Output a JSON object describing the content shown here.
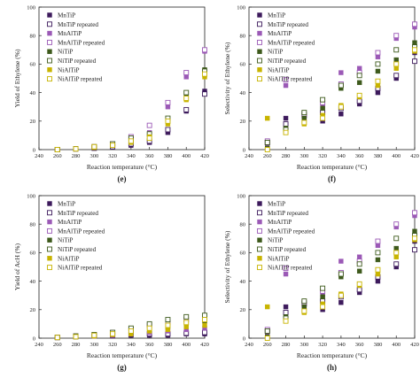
{
  "colors": {
    "MnTiP": "#3d1a5c",
    "MnAlTiP": "#9b59b6",
    "NiTiP": "#3e5a1c",
    "NiAlTiP": "#c8b400"
  },
  "chart_data": [
    {
      "type": "scatter",
      "panel_label": "(e)",
      "xlabel": "Reaction temperature (°C)",
      "ylabel": "Yield of Ethylene (%)",
      "xlim": [
        240,
        420
      ],
      "ylim": [
        0,
        100
      ],
      "x_ticks": [
        "240",
        "260",
        "280",
        "300",
        "320",
        "340",
        "360",
        "380",
        "400",
        "420"
      ],
      "y_ticks": [
        "0",
        "20",
        "40",
        "60",
        "80",
        "100"
      ],
      "legend_position": "top-left",
      "x": [
        260,
        280,
        300,
        320,
        340,
        360,
        380,
        400,
        420
      ],
      "series": [
        {
          "name": "MnTiP",
          "color_key": "MnTiP",
          "filled": true,
          "values": [
            0,
            0.5,
            1,
            2,
            3,
            5,
            12,
            27,
            41
          ]
        },
        {
          "name": "MnTiP repeated",
          "color_key": "MnTiP",
          "filled": false,
          "values": [
            0,
            0.5,
            1,
            2,
            4,
            6,
            14,
            28,
            39
          ]
        },
        {
          "name": "MnAlTiP",
          "color_key": "MnAlTiP",
          "filled": true,
          "values": [
            0,
            0.5,
            1.5,
            3,
            7,
            12,
            30,
            51,
            69
          ]
        },
        {
          "name": "MnAlTiP repeated",
          "color_key": "MnAlTiP",
          "filled": false,
          "values": [
            0,
            0.5,
            2,
            4,
            9,
            17,
            33,
            54,
            70
          ]
        },
        {
          "name": "NiTiP",
          "color_key": "NiTiP",
          "filled": true,
          "values": [
            0,
            0.5,
            1.5,
            3,
            6,
            10,
            20,
            38,
            56
          ]
        },
        {
          "name": "NiTiP repeated",
          "color_key": "NiTiP",
          "filled": false,
          "values": [
            0,
            0.5,
            2,
            4,
            8,
            11,
            22,
            40,
            55
          ]
        },
        {
          "name": "NiAlTiP",
          "color_key": "NiAlTiP",
          "filled": true,
          "values": [
            0,
            0.5,
            1.5,
            3,
            5,
            9,
            18,
            35,
            51
          ]
        },
        {
          "name": "NiAlTiP repeated",
          "color_key": "NiAlTiP",
          "filled": false,
          "values": [
            0,
            0.5,
            2,
            3,
            6,
            8,
            20,
            36,
            53
          ]
        }
      ]
    },
    {
      "type": "scatter",
      "panel_label": "(f)",
      "xlabel": "Reaction temperature (°C)",
      "ylabel": "Selectivity of Ethylene (%)",
      "xlim": [
        240,
        420
      ],
      "ylim": [
        0,
        100
      ],
      "x_ticks": [
        "240",
        "260",
        "280",
        "300",
        "320",
        "340",
        "360",
        "380",
        "400",
        "420"
      ],
      "y_ticks": [
        "0",
        "20",
        "40",
        "60",
        "80",
        "100"
      ],
      "legend_position": "top-left",
      "x": [
        260,
        280,
        300,
        320,
        340,
        360,
        380,
        400,
        420
      ],
      "series": [
        {
          "name": "MnTiP",
          "color_key": "MnTiP",
          "filled": true,
          "values": [
            1,
            22,
            21,
            20,
            25,
            32,
            40,
            50,
            68
          ]
        },
        {
          "name": "MnTiP repeated",
          "color_key": "MnTiP",
          "filled": false,
          "values": [
            5,
            18,
            24,
            26,
            29,
            34,
            43,
            52,
            62
          ]
        },
        {
          "name": "MnAlTiP",
          "color_key": "MnAlTiP",
          "filled": true,
          "values": [
            2,
            45,
            22,
            30,
            54,
            57,
            65,
            78,
            86
          ]
        },
        {
          "name": "MnAlTiP repeated",
          "color_key": "MnAlTiP",
          "filled": false,
          "values": [
            6,
            49,
            25,
            33,
            46,
            54,
            68,
            80,
            88
          ]
        },
        {
          "name": "NiTiP",
          "color_key": "NiTiP",
          "filled": true,
          "values": [
            1,
            15,
            22,
            29,
            43,
            47,
            55,
            63,
            75
          ]
        },
        {
          "name": "NiTiP repeated",
          "color_key": "NiTiP",
          "filled": false,
          "values": [
            5,
            14,
            26,
            35,
            45,
            52,
            60,
            70,
            72
          ]
        },
        {
          "name": "NiAlTiP",
          "color_key": "NiAlTiP",
          "filled": true,
          "values": [
            22,
            12,
            18,
            24,
            31,
            37,
            45,
            57,
            69
          ]
        },
        {
          "name": "NiAlTiP repeated",
          "color_key": "NiAlTiP",
          "filled": false,
          "values": [
            0,
            12,
            19,
            22,
            30,
            38,
            48,
            60,
            70
          ]
        }
      ]
    },
    {
      "type": "scatter",
      "panel_label": "(g)",
      "xlabel": "Reaction temperature (°C)",
      "ylabel": "Yield of AcH (%)",
      "xlim": [
        240,
        420
      ],
      "ylim": [
        0,
        100
      ],
      "x_ticks": [
        "240",
        "260",
        "280",
        "300",
        "320",
        "340",
        "360",
        "380",
        "400",
        "420"
      ],
      "y_ticks": [
        "0",
        "20",
        "40",
        "60",
        "80",
        "100"
      ],
      "legend_position": "top-left",
      "x": [
        260,
        280,
        300,
        320,
        340,
        360,
        380,
        400,
        420
      ],
      "series": [
        {
          "name": "MnTiP",
          "color_key": "MnTiP",
          "filled": true,
          "values": [
            0.5,
            1,
            1.5,
            1.5,
            2,
            2,
            2,
            3,
            3
          ]
        },
        {
          "name": "MnTiP repeated",
          "color_key": "MnTiP",
          "filled": false,
          "values": [
            0.5,
            1,
            1.5,
            2,
            2.5,
            3,
            3,
            3.5,
            4
          ]
        },
        {
          "name": "MnAlTiP",
          "color_key": "MnAlTiP",
          "filled": true,
          "values": [
            0.5,
            1,
            1.5,
            2,
            3,
            4,
            5,
            6,
            7
          ]
        },
        {
          "name": "MnAlTiP repeated",
          "color_key": "MnAlTiP",
          "filled": false,
          "values": [
            0.5,
            1.5,
            2.5,
            4,
            6,
            9,
            11,
            13,
            14
          ]
        },
        {
          "name": "NiTiP",
          "color_key": "NiTiP",
          "filled": true,
          "values": [
            0.5,
            1,
            2,
            3,
            4,
            6,
            8,
            10,
            12
          ]
        },
        {
          "name": "NiTiP repeated",
          "color_key": "NiTiP",
          "filled": false,
          "values": [
            0.5,
            1.5,
            2.5,
            4,
            7,
            10,
            13,
            15,
            16
          ]
        },
        {
          "name": "NiAlTiP",
          "color_key": "NiAlTiP",
          "filled": true,
          "values": [
            0.5,
            1,
            1.5,
            2.5,
            3,
            5,
            6,
            8,
            9
          ]
        },
        {
          "name": "NiAlTiP repeated",
          "color_key": "NiAlTiP",
          "filled": false,
          "values": [
            0.5,
            1,
            2,
            3,
            5,
            7,
            9,
            11,
            13
          ]
        }
      ]
    },
    {
      "type": "scatter",
      "panel_label": "(h)",
      "xlabel": "Reaction temperature (°C)",
      "ylabel": "Selectivity of Ethylene (%)",
      "xlim": [
        240,
        420
      ],
      "ylim": [
        0,
        100
      ],
      "x_ticks": [
        "240",
        "260",
        "280",
        "300",
        "320",
        "340",
        "360",
        "380",
        "400",
        "420"
      ],
      "y_ticks": [
        "0",
        "20",
        "40",
        "60",
        "80",
        "100"
      ],
      "legend_position": "top-left",
      "x": [
        260,
        280,
        300,
        320,
        340,
        360,
        380,
        400,
        420
      ],
      "series": [
        {
          "name": "MnTiP",
          "color_key": "MnTiP",
          "filled": true,
          "values": [
            1,
            22,
            21,
            20,
            25,
            32,
            40,
            50,
            68
          ]
        },
        {
          "name": "MnTiP repeated",
          "color_key": "MnTiP",
          "filled": false,
          "values": [
            5,
            18,
            24,
            26,
            29,
            34,
            43,
            52,
            62
          ]
        },
        {
          "name": "MnAlTiP",
          "color_key": "MnAlTiP",
          "filled": true,
          "values": [
            2,
            45,
            22,
            30,
            54,
            57,
            65,
            78,
            86
          ]
        },
        {
          "name": "MnAlTiP repeated",
          "color_key": "MnAlTiP",
          "filled": false,
          "values": [
            6,
            49,
            25,
            33,
            46,
            54,
            68,
            80,
            88
          ]
        },
        {
          "name": "NiTiP",
          "color_key": "NiTiP",
          "filled": true,
          "values": [
            1,
            15,
            22,
            29,
            43,
            47,
            55,
            63,
            75
          ]
        },
        {
          "name": "NiTiP repeated",
          "color_key": "NiTiP",
          "filled": false,
          "values": [
            5,
            14,
            26,
            35,
            45,
            52,
            60,
            70,
            72
          ]
        },
        {
          "name": "NiAlTiP",
          "color_key": "NiAlTiP",
          "filled": true,
          "values": [
            22,
            12,
            18,
            24,
            31,
            37,
            45,
            57,
            69
          ]
        },
        {
          "name": "NiAlTiP repeated",
          "color_key": "NiAlTiP",
          "filled": false,
          "values": [
            0,
            12,
            19,
            22,
            30,
            38,
            48,
            60,
            70
          ]
        }
      ]
    }
  ]
}
